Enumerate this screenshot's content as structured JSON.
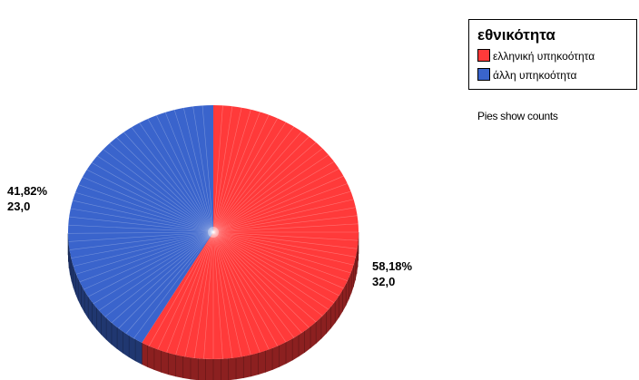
{
  "chart_data": {
    "type": "pie",
    "title": "",
    "categories": [
      "ελληνική υπηκοότητα",
      "άλλη υπηκοότητα"
    ],
    "values": [
      32.0,
      23.0
    ],
    "percentages": [
      "58,18%",
      "41,82%"
    ],
    "value_labels": [
      "32,0",
      "23,0"
    ],
    "colors": [
      "#ff3a3a",
      "#3a64cc"
    ],
    "legend": {
      "title": "εθνικότητα",
      "placement": "top-right",
      "items": [
        {
          "label": "ελληνική υπηκοότητα",
          "color": "#ff3a3a"
        },
        {
          "label": "άλλη υπηκοότητα",
          "color": "#3a64cc"
        }
      ]
    },
    "note": "Pies show counts",
    "style": "3d"
  }
}
